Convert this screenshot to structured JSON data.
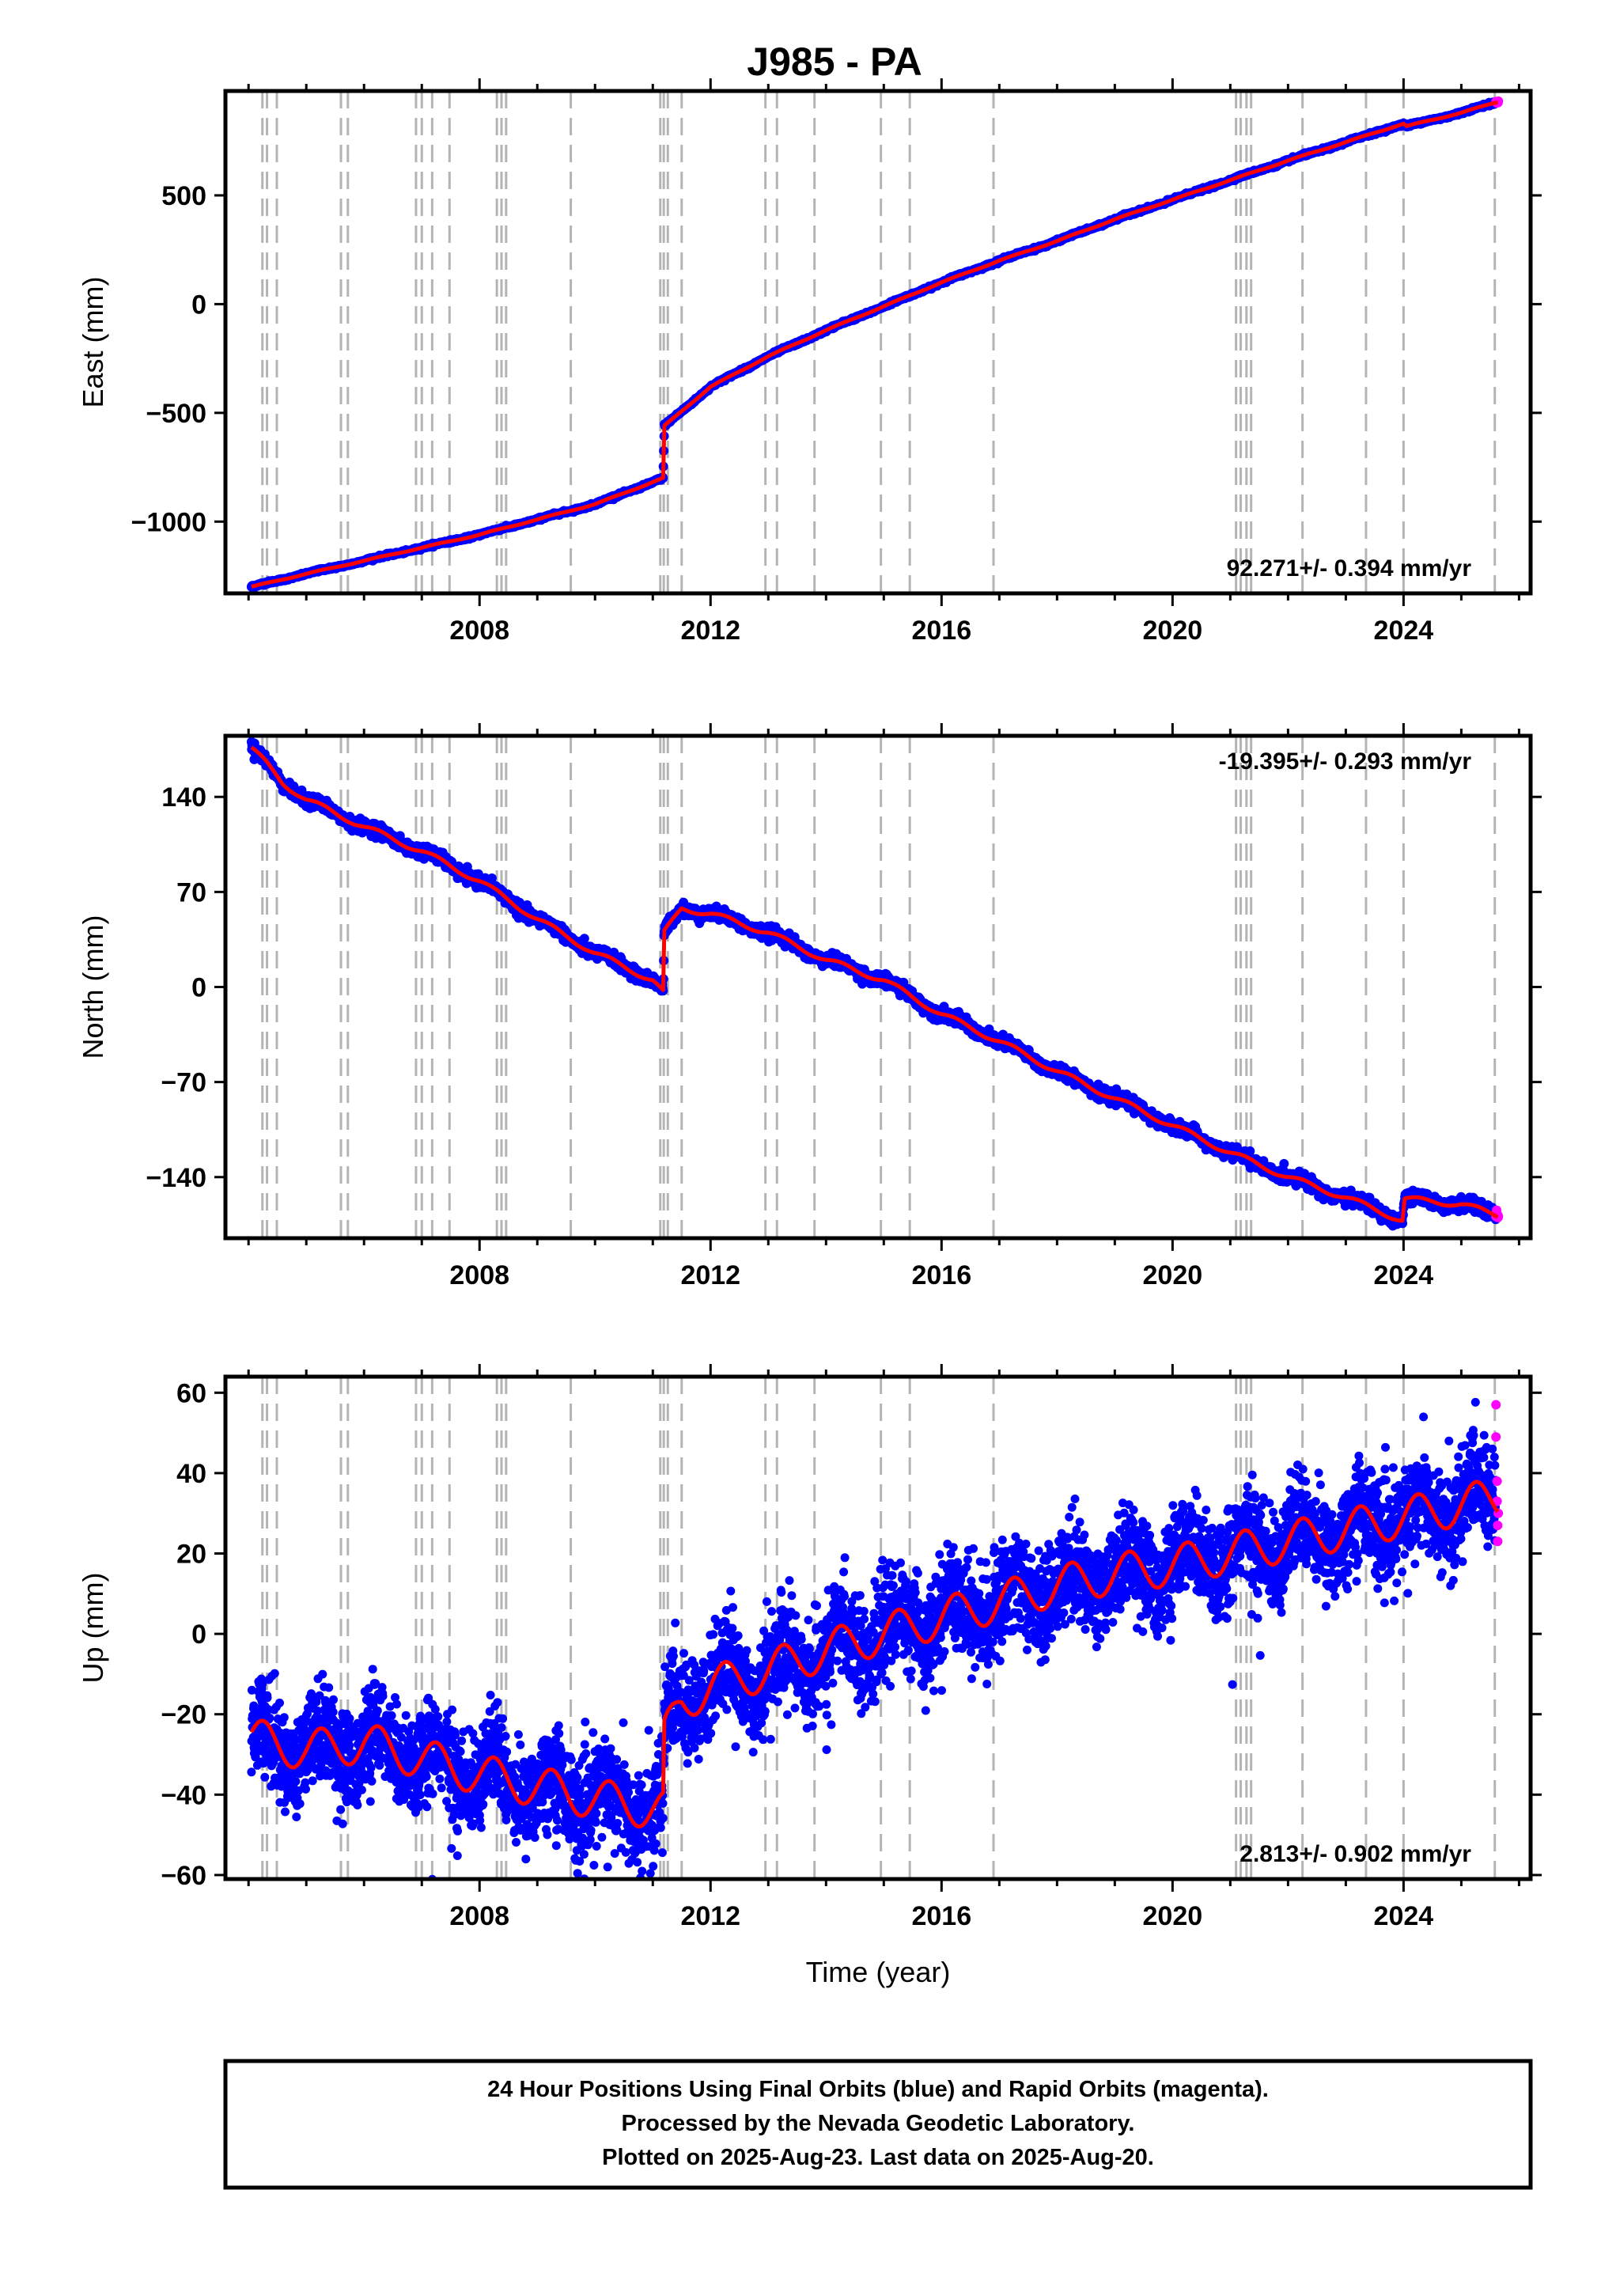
{
  "title": "J985 - PA",
  "colors": {
    "final_orbits": "#0000ff",
    "rapid_orbits": "#ff00ff",
    "model": "#ff0000",
    "event_lines": "#b4b4b4"
  },
  "chart_data": [
    {
      "type": "scatter",
      "component": "East",
      "ylabel": "East (mm)",
      "xlim": [
        2003.6,
        2026.2
      ],
      "ylim": [
        -1330,
        980
      ],
      "y_ticks": [
        -1000,
        -500,
        0,
        500
      ],
      "x_ticks": [
        2008,
        2012,
        2016,
        2020,
        2024
      ],
      "rate_label": "92.271+/- 0.394 mm/yr",
      "rate_position": "bottom-right",
      "start": {
        "t": 2004.05,
        "y": -1300
      },
      "pre_step_end": {
        "t": 2011.18,
        "y": -800
      },
      "step": {
        "t": 2011.19,
        "y_after": -560
      },
      "postseismic": {
        "amplitude": 235,
        "tau_years": 2.0
      },
      "late_step": {
        "t": 2024.0,
        "dy": -10
      },
      "end": {
        "t": 2025.63,
        "y": 930
      },
      "model_points": [
        [
          2004.05,
          -1300
        ],
        [
          2005.0,
          -1240
        ],
        [
          2006.0,
          -1180
        ],
        [
          2007.0,
          -1120
        ],
        [
          2008.0,
          -1060
        ],
        [
          2009.0,
          -990
        ],
        [
          2010.0,
          -920
        ],
        [
          2011.18,
          -800
        ],
        [
          2011.2,
          -560
        ],
        [
          2012.0,
          -380
        ],
        [
          2013.0,
          -240
        ],
        [
          2014.0,
          -120
        ],
        [
          2015.0,
          -10
        ],
        [
          2016.0,
          100
        ],
        [
          2017.0,
          200
        ],
        [
          2018.0,
          290
        ],
        [
          2019.0,
          390
        ],
        [
          2020.0,
          480
        ],
        [
          2021.0,
          570
        ],
        [
          2022.0,
          660
        ],
        [
          2023.0,
          745
        ],
        [
          2024.0,
          830
        ],
        [
          2024.05,
          818
        ],
        [
          2025.0,
          880
        ],
        [
          2025.63,
          930
        ]
      ],
      "noise_sd": 3,
      "seasonal_amplitude": 2
    },
    {
      "type": "scatter",
      "component": "North",
      "ylabel": "North (mm)",
      "xlim": [
        2003.6,
        2026.2
      ],
      "ylim": [
        -185,
        185
      ],
      "y_ticks": [
        -140,
        -70,
        0,
        70,
        140
      ],
      "x_ticks": [
        2008,
        2012,
        2016,
        2020,
        2024
      ],
      "rate_label": "-19.395+/- 0.293 mm/yr",
      "rate_position": "top-right",
      "model_points": [
        [
          2004.05,
          176
        ],
        [
          2004.3,
          165
        ],
        [
          2004.6,
          150
        ],
        [
          2005.0,
          138
        ],
        [
          2006.0,
          118
        ],
        [
          2007.0,
          100
        ],
        [
          2008.0,
          78
        ],
        [
          2009.0,
          50
        ],
        [
          2010.0,
          25
        ],
        [
          2011.0,
          5
        ],
        [
          2011.18,
          -4
        ],
        [
          2011.2,
          40
        ],
        [
          2011.5,
          58
        ],
        [
          2012.0,
          54
        ],
        [
          2013.0,
          40
        ],
        [
          2014.0,
          20
        ],
        [
          2015.0,
          5
        ],
        [
          2016.0,
          -20
        ],
        [
          2017.0,
          -40
        ],
        [
          2018.0,
          -62
        ],
        [
          2019.0,
          -82
        ],
        [
          2020.0,
          -102
        ],
        [
          2021.0,
          -122
        ],
        [
          2022.0,
          -140
        ],
        [
          2023.0,
          -155
        ],
        [
          2023.98,
          -172
        ],
        [
          2024.02,
          -156
        ],
        [
          2025.0,
          -160
        ],
        [
          2025.63,
          -168
        ]
      ],
      "noise_sd": 2.2,
      "seasonal_amplitude": 2
    },
    {
      "type": "scatter",
      "component": "Up",
      "ylabel": "Up (mm)",
      "xlabel": "Time (year)",
      "xlim": [
        2003.6,
        2026.2
      ],
      "ylim": [
        -61,
        64
      ],
      "y_ticks": [
        -60,
        -40,
        -20,
        0,
        20,
        40,
        60
      ],
      "x_ticks": [
        2008,
        2012,
        2016,
        2020,
        2024
      ],
      "rate_label": "2.813+/- 0.902 mm/yr",
      "rate_position": "bottom-right",
      "model_points": [
        [
          2004.05,
          -26
        ],
        [
          2005.0,
          -29
        ],
        [
          2006.0,
          -27
        ],
        [
          2007.0,
          -31
        ],
        [
          2008.0,
          -35
        ],
        [
          2009.0,
          -38
        ],
        [
          2010.0,
          -41
        ],
        [
          2011.18,
          -44
        ],
        [
          2011.2,
          -26
        ],
        [
          2011.5,
          -17
        ],
        [
          2012.0,
          -13
        ],
        [
          2013.0,
          -9
        ],
        [
          2014.0,
          -4
        ],
        [
          2015.0,
          0
        ],
        [
          2016.0,
          4
        ],
        [
          2017.0,
          8
        ],
        [
          2018.0,
          12
        ],
        [
          2019.0,
          15
        ],
        [
          2020.0,
          17
        ],
        [
          2021.0,
          20
        ],
        [
          2022.0,
          23
        ],
        [
          2023.0,
          26
        ],
        [
          2024.0,
          29
        ],
        [
          2025.0,
          32
        ],
        [
          2025.63,
          34
        ]
      ],
      "noise_sd": 6,
      "seasonal_amplitude": 5,
      "rapid_points": [
        [
          2025.6,
          57
        ],
        [
          2025.6,
          49
        ],
        [
          2025.62,
          38
        ],
        [
          2025.62,
          33
        ],
        [
          2025.63,
          27
        ],
        [
          2025.63,
          23
        ],
        [
          2025.64,
          30
        ]
      ]
    }
  ],
  "event_lines": [
    2004.24,
    2004.32,
    2004.49,
    2005.6,
    2005.72,
    2006.9,
    2007.0,
    2007.18,
    2007.48,
    2008.3,
    2008.38,
    2008.46,
    2009.58,
    2011.13,
    2011.19,
    2011.26,
    2011.5,
    2012.95,
    2013.15,
    2013.8,
    2014.95,
    2015.45,
    2016.9,
    2021.1,
    2021.18,
    2021.28,
    2021.36,
    2022.25,
    2023.35,
    2024.0,
    2025.58
  ],
  "footer": {
    "line1": "24 Hour Positions Using Final Orbits (blue) and Rapid Orbits (magenta).",
    "line2": "Processed by the Nevada Geodetic Laboratory.",
    "line3": "Plotted on 2025-Aug-23. Last data on 2025-Aug-20."
  }
}
